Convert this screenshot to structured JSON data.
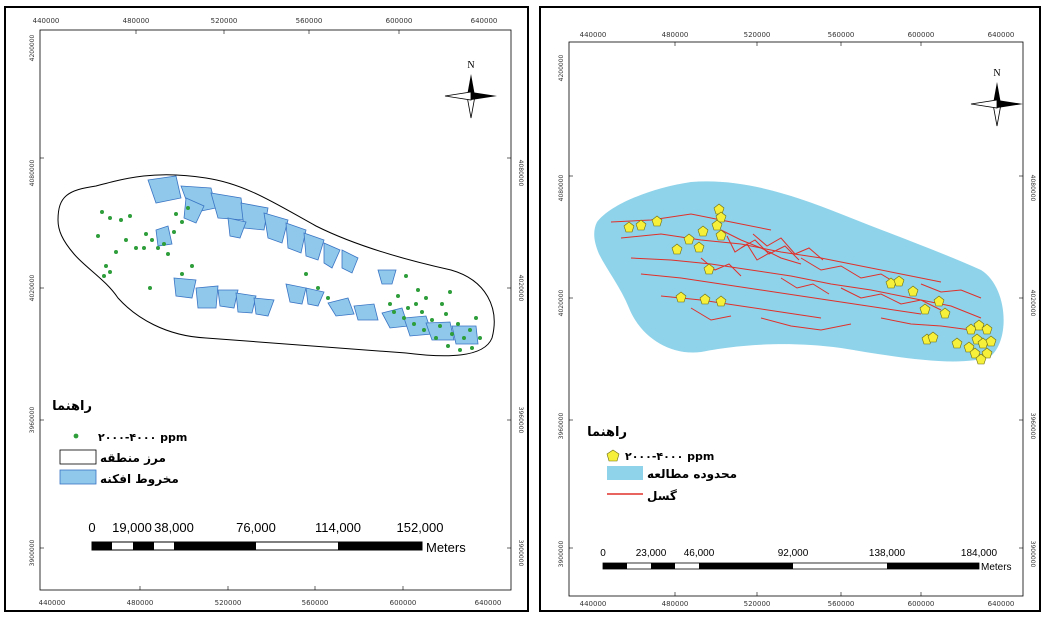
{
  "left_map": {
    "x_ticks": [
      "440000",
      "480000",
      "520000",
      "560000",
      "600000",
      "640000"
    ],
    "y_ticks": [
      "4200000",
      "4080000",
      "4020000",
      "3960000",
      "3900000"
    ],
    "north_label": "N",
    "legend": {
      "title": "راهنما",
      "items": [
        {
          "label": "۲۰۰۰-۴۰۰۰ ppm",
          "symbol": "green-dot",
          "color": "#2e9e3a"
        },
        {
          "label": "مرز منطقه",
          "symbol": "outline-box",
          "color": "#ffffff"
        },
        {
          "label": "مخروط افکنه",
          "symbol": "filled-box",
          "color": "#8fc8ea"
        }
      ]
    },
    "scale_bar": {
      "labels": [
        "0",
        "19,000",
        "38,000",
        "76,000",
        "114,000",
        "152,000"
      ],
      "unit": "Meters"
    }
  },
  "right_map": {
    "x_ticks": [
      "440000",
      "480000",
      "520000",
      "560000",
      "600000",
      "640000"
    ],
    "y_ticks": [
      "4200000",
      "4080000",
      "4020000",
      "3960000",
      "3900000"
    ],
    "north_label": "N",
    "legend": {
      "title": "راهنما",
      "items": [
        {
          "label": "۲۰۰۰-۴۰۰۰ ppm",
          "symbol": "yellow-pentagon",
          "color": "#f6f03a"
        },
        {
          "label": "محدوده مطالعه",
          "symbol": "filled-box",
          "color": "#8fd3ea"
        },
        {
          "label": "گسل",
          "symbol": "red-line",
          "color": "#e0302a"
        }
      ]
    },
    "scale_bar": {
      "labels": [
        "0",
        "23,000",
        "46,000",
        "92,000",
        "138,000",
        "184,000"
      ],
      "unit": "Meters"
    }
  }
}
